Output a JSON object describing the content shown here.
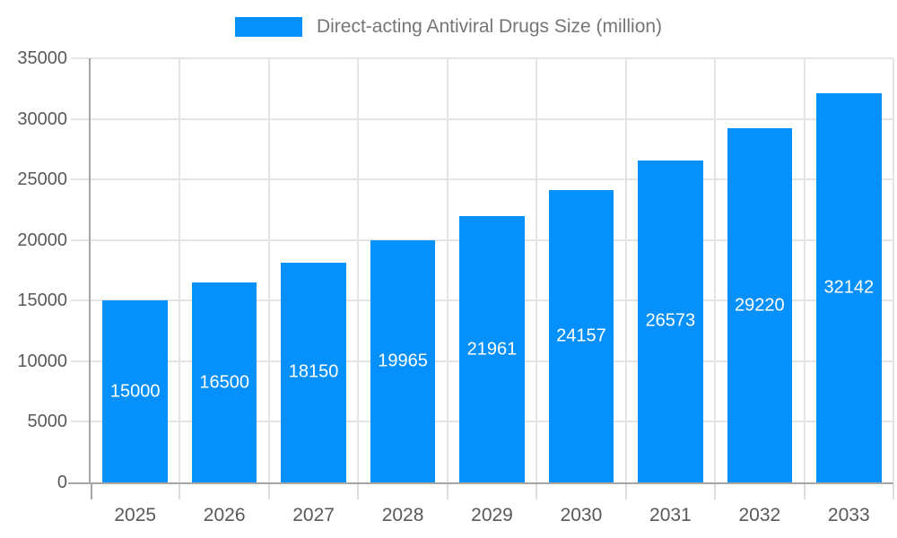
{
  "legend": {
    "items": [
      {
        "label": "Direct-acting Antiviral Drugs Size (million)",
        "swatch_color": "#0590fb"
      }
    ],
    "position": "top"
  },
  "colors": {
    "bar": "#0590fb",
    "value_label": "#ffffff",
    "axis_label": "#595959",
    "legend_text": "#757575",
    "gridline": "#e4e4e4",
    "axis_line": "#a6a6a6",
    "background": "#ffffff"
  },
  "chart_data": {
    "type": "bar",
    "title": "",
    "xlabel": "",
    "ylabel": "",
    "legend": [
      "Direct-acting Antiviral Drugs Size (million)"
    ],
    "categories": [
      "2025",
      "2026",
      "2027",
      "2028",
      "2029",
      "2030",
      "2031",
      "2032",
      "2033"
    ],
    "values": [
      15000,
      16500,
      18150,
      19965,
      21961,
      24157,
      26573,
      29220,
      32142
    ],
    "ylim": [
      0,
      35000
    ],
    "ytick_step": 5000,
    "ytick_labels": [
      "0",
      "5000",
      "10000",
      "15000",
      "20000",
      "25000",
      "30000",
      "35000"
    ],
    "grid": true,
    "legend_position": "top",
    "value_label_position": "inside-center",
    "bar_color": "#0590fb"
  }
}
